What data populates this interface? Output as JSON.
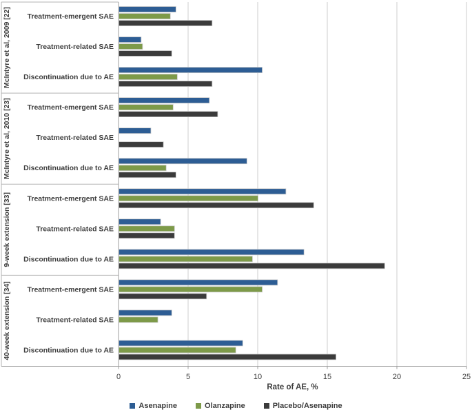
{
  "chart_data": {
    "type": "bar",
    "orientation": "horizontal",
    "xlabel": "Rate of AE, %",
    "xlim": [
      0,
      25
    ],
    "xticks": [
      0,
      5,
      10,
      15,
      20,
      25
    ],
    "grid": true,
    "legend_position": "bottom",
    "group_labels": [
      "McIntyre et al, 2009 [22]",
      "McIntyre et al, 2010 [23]",
      "9-week extension [33]",
      "40-week extension [34]"
    ],
    "categories": [
      "Treatment-emergent SAE",
      "Treatment-related SAE",
      "Discontinuation due to AE"
    ],
    "series": [
      {
        "name": "Asenapine",
        "color": "#2D5D94",
        "values": [
          [
            4.1,
            1.6,
            10.3
          ],
          [
            6.5,
            2.3,
            9.2
          ],
          [
            12.0,
            3.0,
            13.3
          ],
          [
            11.4,
            3.8,
            8.9
          ]
        ]
      },
      {
        "name": "Olanzapine",
        "color": "#7D9A49",
        "values": [
          [
            3.7,
            1.7,
            4.2
          ],
          [
            3.9,
            0,
            3.4
          ],
          [
            10.0,
            4.0,
            9.6
          ],
          [
            10.3,
            2.8,
            8.4
          ]
        ]
      },
      {
        "name": "Placebo/Asenapine",
        "color": "#3B3B3B",
        "values": [
          [
            6.7,
            3.8,
            6.7
          ],
          [
            7.1,
            3.2,
            4.1
          ],
          [
            14.0,
            4.0,
            19.1
          ],
          [
            6.3,
            0,
            15.6
          ]
        ]
      }
    ],
    "colors": {
      "gridline": "#cdcdcd",
      "axis": "#9e9e9e",
      "label_box": "#b3b3b3",
      "text": "#3d3d3d"
    }
  }
}
